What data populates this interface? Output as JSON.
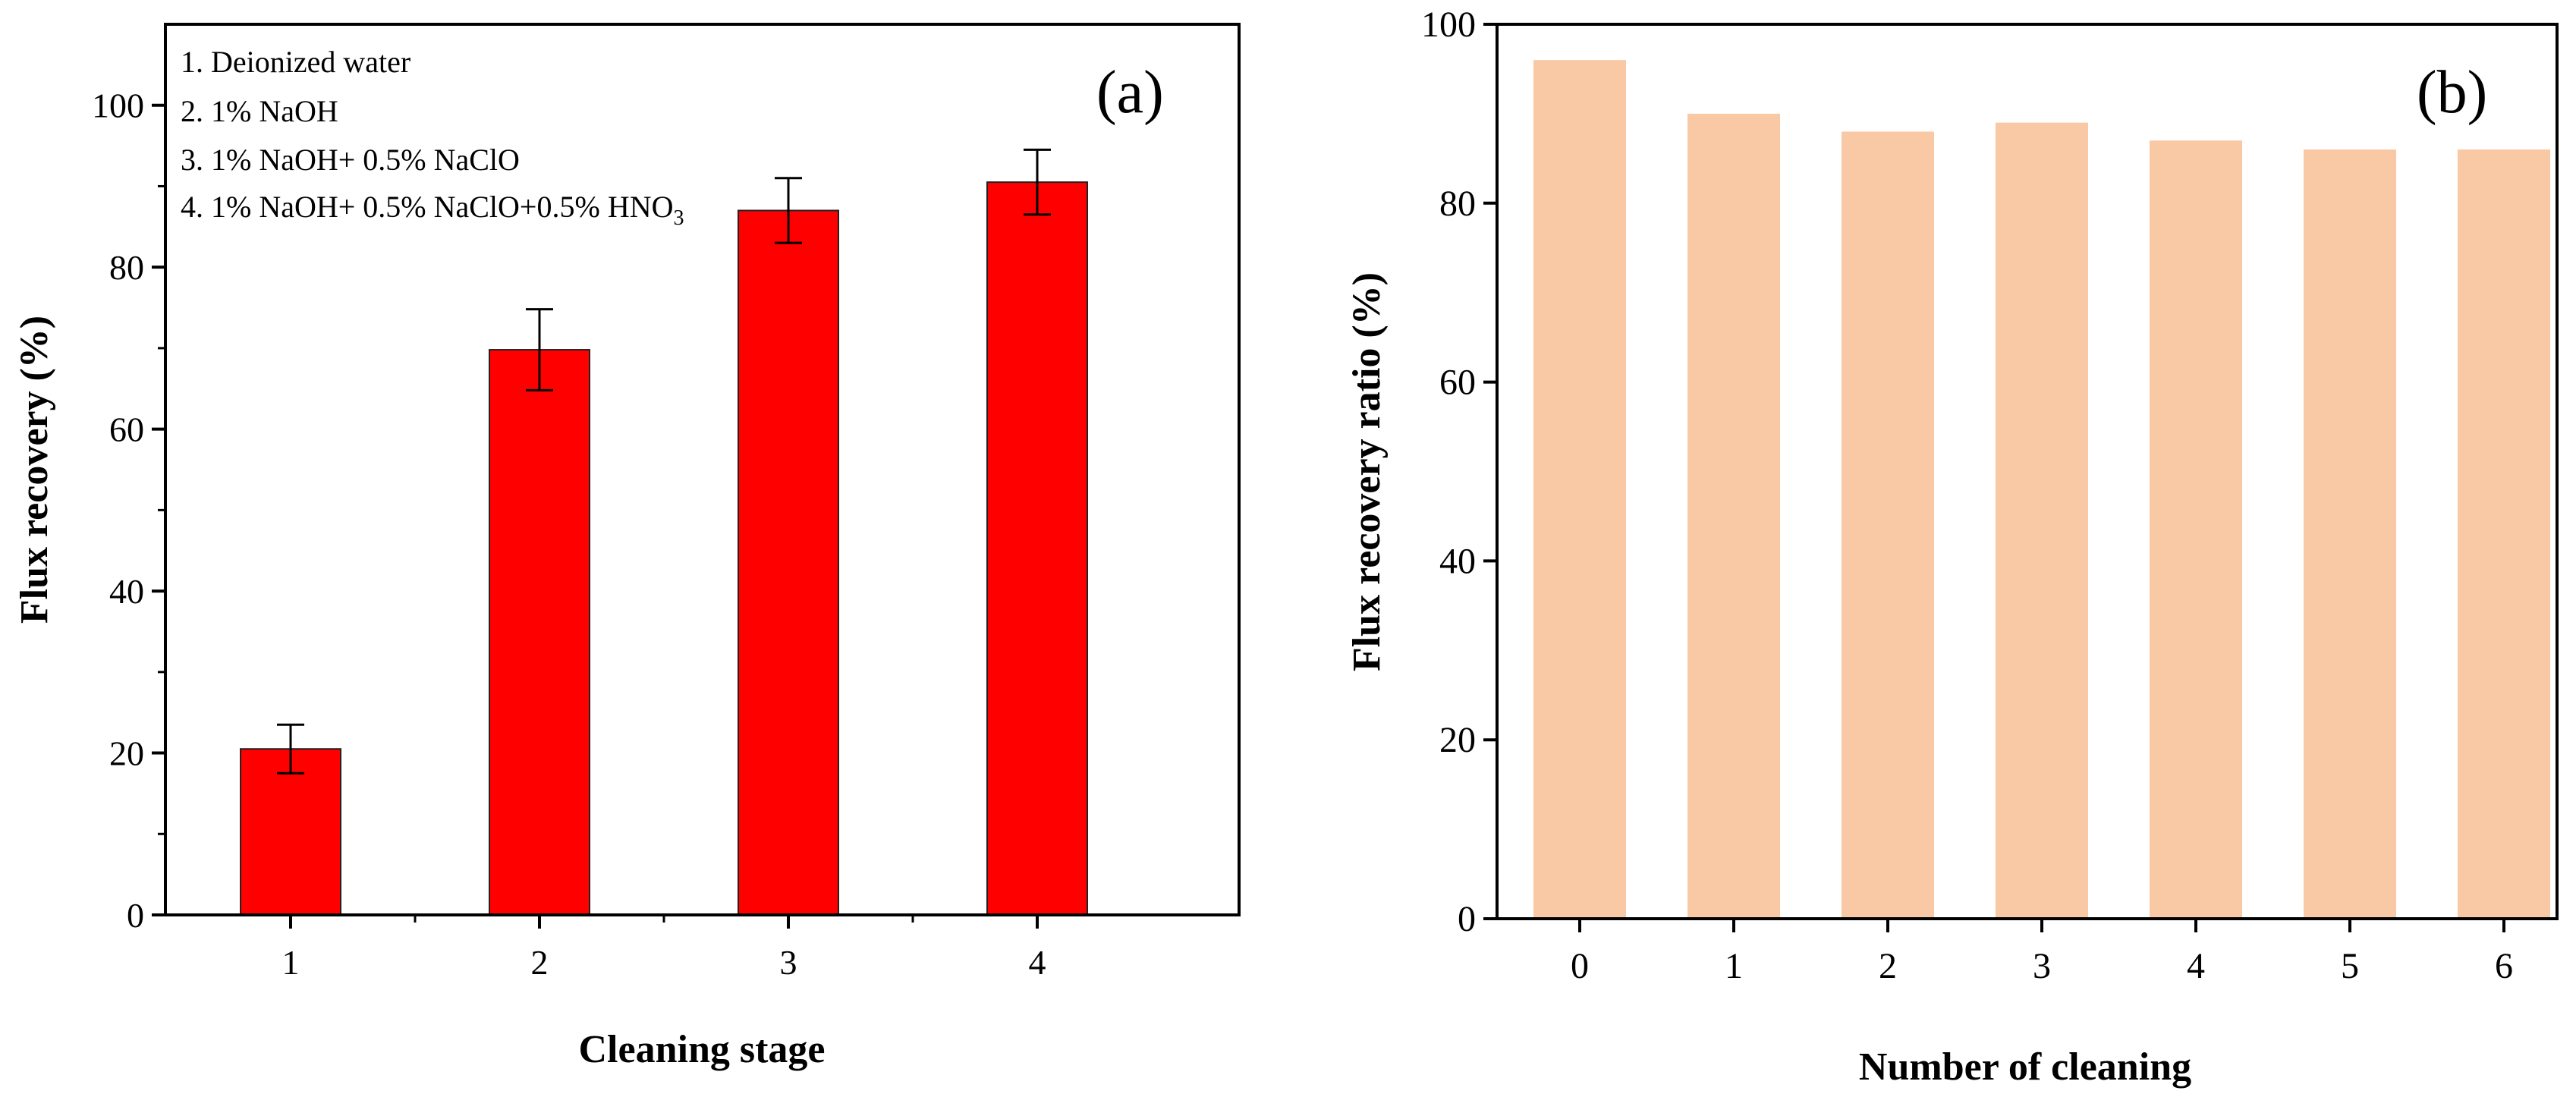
{
  "chart_data": [
    {
      "panel_label": "(a)",
      "type": "bar",
      "categories": [
        "1",
        "2",
        "3",
        "4"
      ],
      "values": [
        20.5,
        69.8,
        87.0,
        90.5
      ],
      "error": [
        3.0,
        5.0,
        4.0,
        4.0
      ],
      "xlabel": "Cleaning stage",
      "ylabel": "Flux recovery (%)",
      "ylim": [
        0,
        110
      ],
      "yticks": [
        "0",
        "20",
        "40",
        "60",
        "80",
        "100"
      ],
      "bar_color": "#ff0000",
      "legend": [
        "1. Deionized water",
        "2. 1% NaOH",
        "3. 1% NaOH+ 0.5% NaClO",
        "4. 1% NaOH+ 0.5% NaClO+0.5% HNO"
      ],
      "legend_subscript": "3"
    },
    {
      "panel_label": "(b)",
      "type": "bar",
      "categories": [
        "0",
        "1",
        "2",
        "3",
        "4",
        "5",
        "6"
      ],
      "values": [
        96,
        90,
        88,
        89,
        87,
        86,
        86
      ],
      "xlabel": "Number of cleaning",
      "ylabel": "Flux recovery ratio (%)",
      "ylim": [
        0,
        100
      ],
      "yticks": [
        "0",
        "20",
        "40",
        "60",
        "80",
        "100"
      ],
      "bar_color": "#f9c8a4"
    }
  ]
}
